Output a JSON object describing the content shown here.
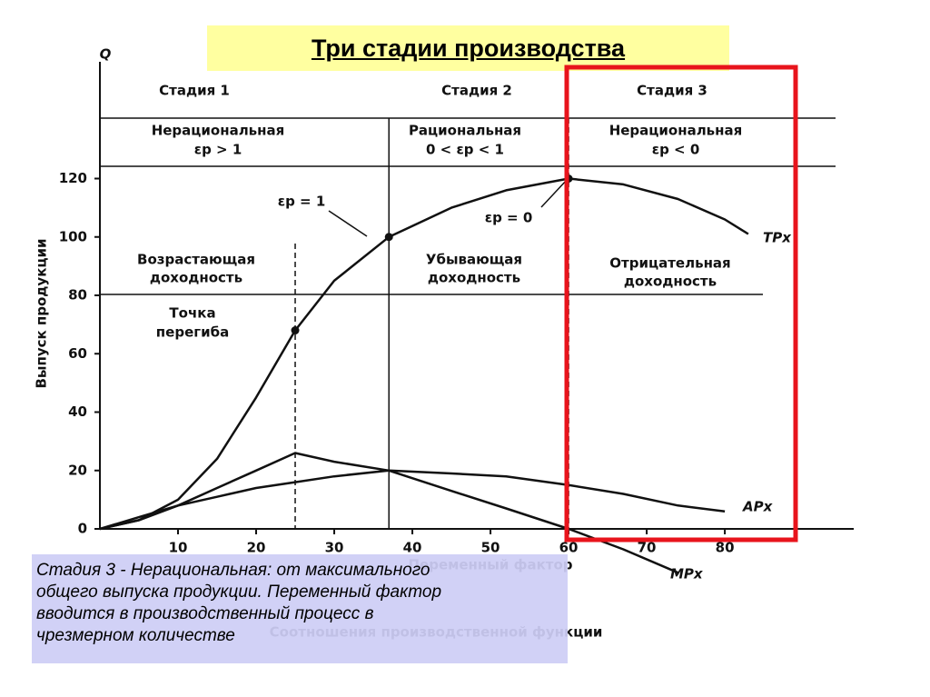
{
  "chart_data": {
    "type": "line",
    "title": "Три стадии производства",
    "y_label": "Выпуск продукции",
    "y_axis_name": "Q",
    "x_label": "Переменный фактор",
    "subtitle": "Соотношения производственной функции",
    "x": [
      0,
      5,
      10,
      15,
      20,
      25,
      30,
      37,
      45,
      52,
      60,
      67,
      74,
      80,
      83
    ],
    "series": [
      {
        "name": "TPx",
        "color": "#111111",
        "values": [
          0,
          3,
          10,
          24,
          45,
          68,
          85,
          100,
          110,
          116,
          120,
          118,
          113,
          106,
          101
        ]
      },
      {
        "name": "APx",
        "color": "#111111",
        "values": [
          0,
          4,
          8,
          11,
          14,
          16,
          18,
          20,
          19,
          18,
          15,
          12,
          8,
          6,
          null
        ]
      },
      {
        "name": "MPx",
        "color": "#111111",
        "values": [
          0,
          3,
          8,
          14,
          20,
          26,
          23,
          20,
          13,
          7,
          0,
          -7,
          -15,
          null,
          null
        ]
      }
    ],
    "xlim": [
      0,
      96.5
    ],
    "ylim": [
      0,
      160
    ],
    "xticks": [
      10,
      20,
      30,
      40,
      50,
      60,
      70,
      80
    ],
    "yticks": [
      0,
      20,
      40,
      60,
      80,
      100,
      120
    ],
    "annotations": [
      "Стадия 1",
      "Стадия 2",
      "Стадия 3",
      "Нерациональная",
      "εp > 1",
      "Рациональная",
      "0 < εp < 1",
      "Нерациональная",
      "εp < 0",
      "εp = 1",
      "εp = 0",
      "Возрастающая",
      "доходность",
      "Убывающая",
      "доходность",
      "Отрицательная",
      "доходность",
      "Точка",
      "перегиба"
    ],
    "note": [
      "Стадия 3 - Нерациональная: от  максимального",
      "общего выпуска продукции. Переменный фактор",
      "вводится в производственный процесс в",
      "чрезмерном количестве"
    ]
  }
}
